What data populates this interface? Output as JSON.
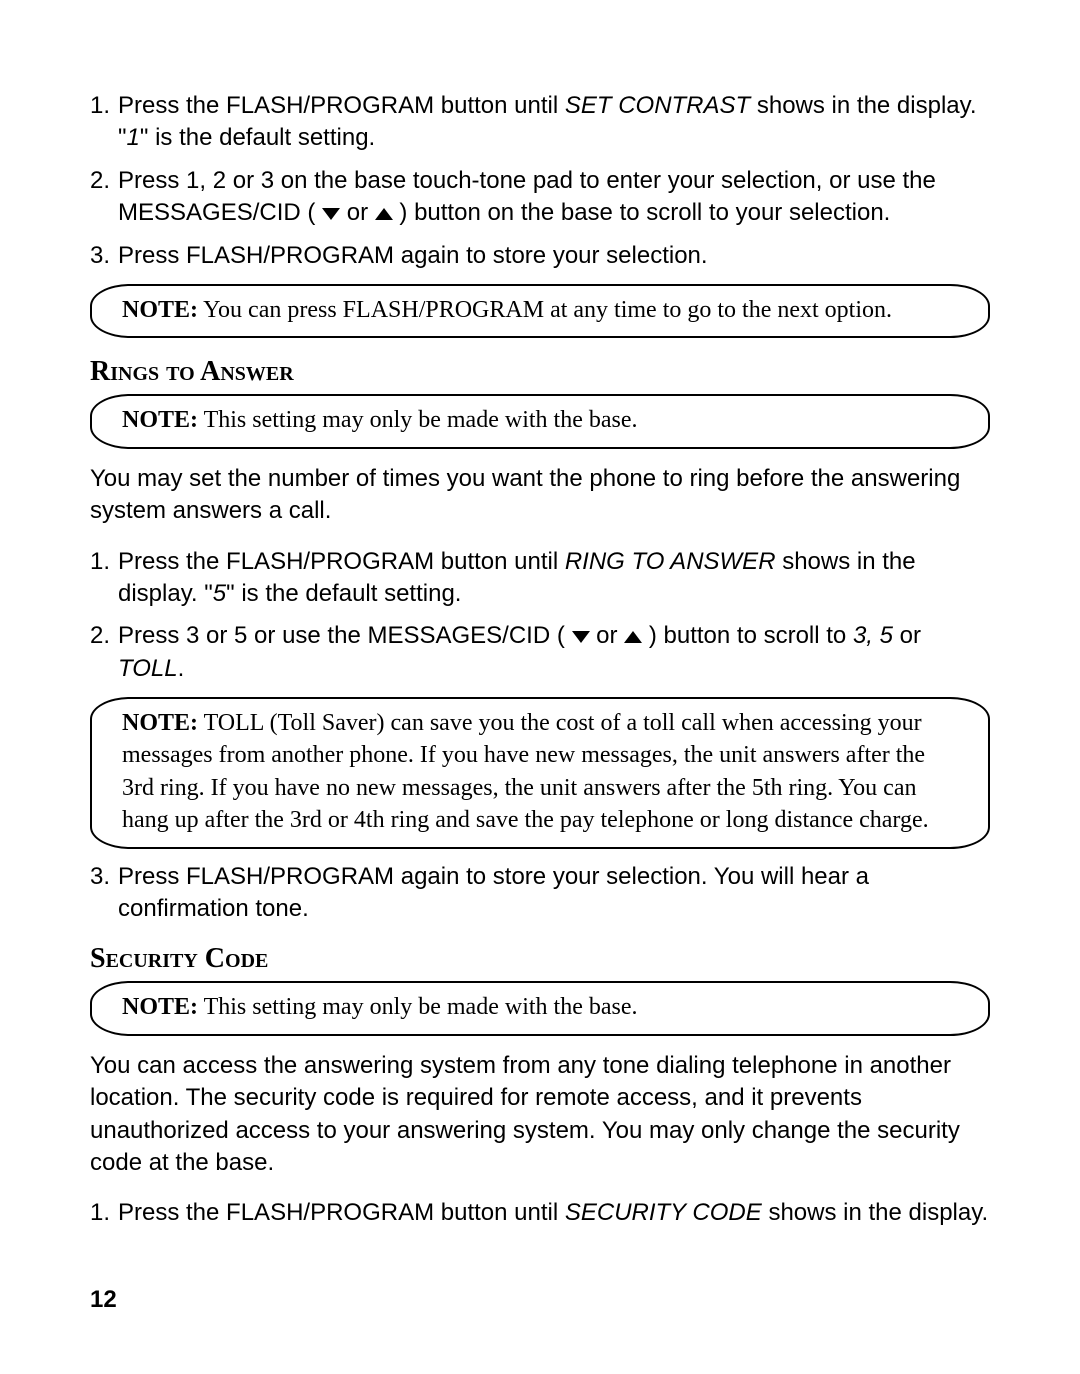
{
  "contrast": {
    "step1": {
      "num": "1.",
      "t1": "Press the FLASH/PROGRAM button until ",
      "italic1": "SET CONTRAST",
      "t2": " shows in the display. \"",
      "italic2": "1",
      "t3": "\" is the default setting."
    },
    "step2": {
      "num": "2.",
      "t1": "Press 1, 2 or 3 on the base touch-tone pad to enter your selection, or use the MESSAGES/CID ( ",
      "t2": " or ",
      "t3": " ) button on the base to scroll to your selection."
    },
    "step3": {
      "num": "3.",
      "t1": "Press FLASH/PROGRAM again to store your selection."
    },
    "note": {
      "label": "NOTE:",
      "text": " You can press FLASH/PROGRAM at any time to go to the next option."
    }
  },
  "rings": {
    "heading": "Rings to Answer",
    "note_top": {
      "label": "NOTE:",
      "text": " This setting may only be made with the base."
    },
    "para1": "You may set the number of times you want the phone to ring before the answering system answers a call.",
    "step1": {
      "num": "1.",
      "t1": "Press the FLASH/PROGRAM button until ",
      "italic1": "RING TO ANSWER",
      "t2": " shows in the display. \"",
      "italic2": "5",
      "t3": "\" is the default setting."
    },
    "step2": {
      "num": "2.",
      "t1": "Press 3 or 5 or use the MESSAGES/CID ( ",
      "t2": " or ",
      "t3": " ) button to scroll to ",
      "italic1": "3, 5",
      "t4": " or ",
      "italic2": "TOLL",
      "t5": "."
    },
    "note_toll": {
      "label": "NOTE:",
      "text": " TOLL (Toll Saver) can save you the cost of a toll call when accessing your messages from another phone. If you have new messages, the unit answers after the 3rd ring. If you have no new messages, the unit answers after the 5th ring. You can hang up after the 3rd or 4th ring and save the pay telephone or long distance charge."
    },
    "step3": {
      "num": "3.",
      "t1": "Press FLASH/PROGRAM again to store your selection. You will hear a confirmation tone."
    }
  },
  "security": {
    "heading": "Security Code",
    "note_top": {
      "label": "NOTE:",
      "text": " This setting may only be made with the base."
    },
    "para1": "You can access the answering system from any tone dialing telephone in another location. The security code is required for remote access, and it prevents unauthorized access to your answering system. You may only change the security code at the base.",
    "step1": {
      "num": "1.",
      "t1": "Press the FLASH/PROGRAM button until ",
      "italic1": "SECURITY CODE ",
      "t2": " shows in the display."
    }
  },
  "page_number": "12"
}
